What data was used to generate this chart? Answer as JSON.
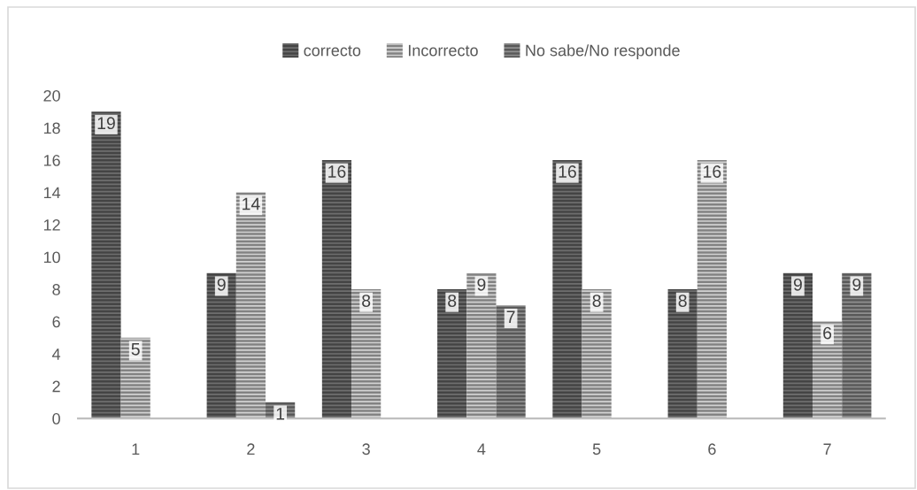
{
  "chart_data": {
    "type": "bar",
    "categories": [
      "1",
      "2",
      "3",
      "4",
      "5",
      "6",
      "7"
    ],
    "series": [
      {
        "name": "correcto",
        "color": "#6e6e6e",
        "values": [
          19,
          9,
          16,
          8,
          16,
          8,
          9
        ]
      },
      {
        "name": "Incorrecto",
        "color": "#d2d2d2",
        "values": [
          5,
          14,
          8,
          9,
          8,
          16,
          6
        ]
      },
      {
        "name": "No sabe/No responde",
        "color": "#909090",
        "values": [
          null,
          1,
          null,
          7,
          null,
          null,
          9
        ]
      }
    ],
    "ylim": [
      0,
      20
    ],
    "yticks": [
      0,
      2,
      4,
      6,
      8,
      10,
      12,
      14,
      16,
      18,
      20
    ],
    "data_labels": true,
    "legend": "top"
  }
}
